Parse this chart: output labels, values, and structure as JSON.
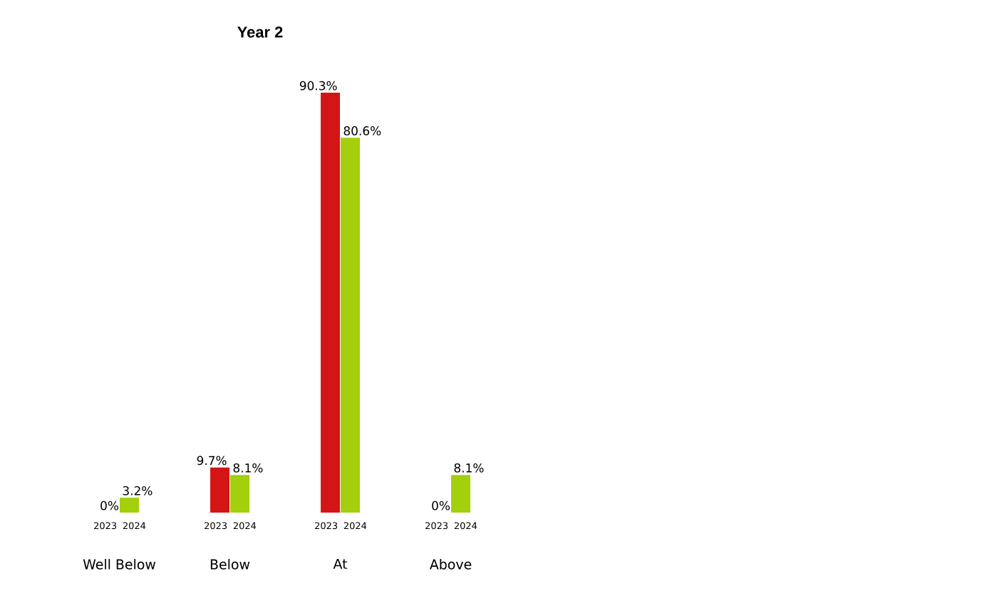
{
  "chart_data": {
    "type": "bar",
    "title": "Year 2",
    "categories": [
      "Well Below",
      "Below",
      "At",
      "Above"
    ],
    "series": [
      {
        "name": "2023",
        "color": "#d41515",
        "values": [
          0,
          9.7,
          90.3,
          0
        ],
        "value_labels": [
          "0%",
          "9.7%",
          "90.3%",
          "0%"
        ]
      },
      {
        "name": "2024",
        "color": "#a3cf0c",
        "values": [
          3.2,
          8.1,
          80.6,
          8.1
        ],
        "value_labels": [
          "3.2%",
          "8.1%",
          "80.6%",
          "8.1%"
        ]
      }
    ]
  }
}
